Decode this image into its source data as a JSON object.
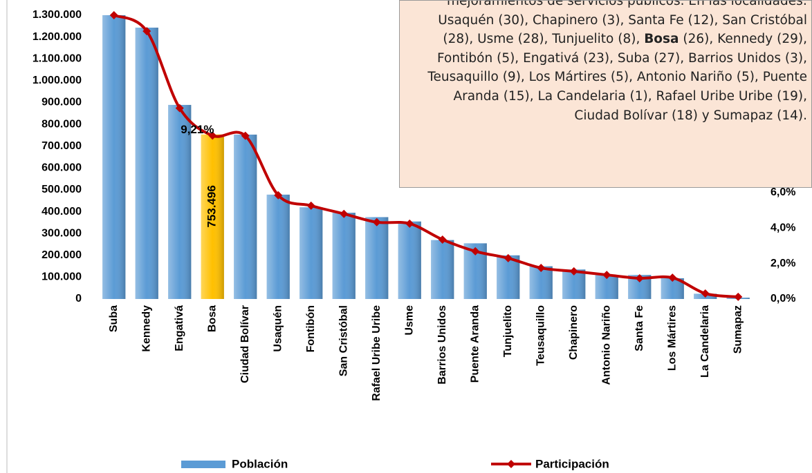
{
  "chart_data": {
    "type": "bar_line",
    "categories": [
      "Suba",
      "Kennedy",
      "Engativá",
      "Bosa",
      "Ciudad Bolívar",
      "Usaquén",
      "Fontibón",
      "San Cristóbal",
      "Rafael Uribe Uribe",
      "Usme",
      "Barrios Unidos",
      "Puente Aranda",
      "Tunjuelito",
      "Teusaquillo",
      "Chapinero",
      "Antonio Nariño",
      "Santa Fe",
      "Los Mártires",
      "La Candelaria",
      "Sumapaz"
    ],
    "series": [
      {
        "name": "Población",
        "type": "bar",
        "color": "#5b9bd5",
        "colors": [
          "#5b9bd5",
          "#5b9bd5",
          "#5b9bd5",
          "#ffc000",
          "#5b9bd5",
          "#5b9bd5",
          "#5b9bd5",
          "#5b9bd5",
          "#5b9bd5",
          "#5b9bd5",
          "#5b9bd5",
          "#5b9bd5",
          "#5b9bd5",
          "#5b9bd5",
          "#5b9bd5",
          "#5b9bd5",
          "#5b9bd5",
          "#5b9bd5",
          "#5b9bd5",
          "#5b9bd5"
        ],
        "values": [
          1300000,
          1243000,
          889000,
          753496,
          753000,
          478000,
          420000,
          395000,
          375000,
          355000,
          270000,
          255000,
          200000,
          150000,
          135000,
          110000,
          110000,
          95000,
          24000,
          6000
        ],
        "value_labels": [
          null,
          null,
          null,
          "753.496",
          null,
          null,
          null,
          null,
          null,
          null,
          null,
          null,
          null,
          null,
          null,
          null,
          null,
          null,
          null,
          null
        ]
      },
      {
        "name": "Participación",
        "type": "line",
        "axis": "y2",
        "color": "#c00000",
        "values": [
          16.0,
          15.1,
          10.76,
          9.21,
          9.2,
          5.85,
          5.26,
          4.8,
          4.33,
          4.25,
          3.35,
          2.69,
          2.3,
          1.75,
          1.56,
          1.36,
          1.17,
          1.2,
          0.31,
          0.12
        ],
        "value_labels": [
          null,
          null,
          null,
          "9,21%",
          null,
          null,
          null,
          null,
          null,
          null,
          null,
          null,
          null,
          null,
          null,
          null,
          null,
          null,
          null,
          null
        ]
      }
    ],
    "ylim": [
      0,
      1300000
    ],
    "yticks": [
      0,
      {
        "value": 100000,
        "label": "100.000"
      },
      {
        "value": 200000,
        "label": "200.000"
      },
      {
        "value": 300000,
        "label": "300.000"
      },
      {
        "value": 400000,
        "label": "400.000"
      },
      {
        "value": 500000,
        "label": "500.000"
      },
      {
        "value": 600000,
        "label": "600.000"
      },
      {
        "value": 700000,
        "label": "700.000"
      },
      {
        "value": 800000,
        "label": "800.000"
      },
      {
        "value": 900000,
        "label": "900.000"
      },
      {
        "value": 1000000,
        "label": "1.000.000"
      },
      {
        "value": 1100000,
        "label": "1.100.000"
      },
      {
        "value": 1200000,
        "label": "1.200.000"
      },
      {
        "value": 1300000,
        "label": "1.300.000"
      }
    ],
    "y2lim": [
      0,
      16
    ],
    "y2ticks": [
      {
        "value": 0,
        "label": "0,0%"
      },
      {
        "value": 2,
        "label": "2,0%"
      },
      {
        "value": 4,
        "label": "4,0%"
      },
      {
        "value": 6,
        "label": "6,0%"
      }
    ],
    "annotation": [
      "mejoramientos de servicios públicos. En las localidades: Usaquén (30), Chapinero (3), Santa Fe (12), San Cristóbal (28), Usme (28), Tunjuelito (8), ",
      "Bosa",
      " (26), Kennedy (29), Fontibón (5), Engativá (23), Suba (27), Barrios Unidos (3), Teusaquillo (9), Los Mártires (5), Antonio Nariño (5), Puente Aranda (15), La Candelaria (1), Rafael Uribe Uribe (19), Ciudad Bolívar (18) y Sumapaz (14)."
    ]
  }
}
